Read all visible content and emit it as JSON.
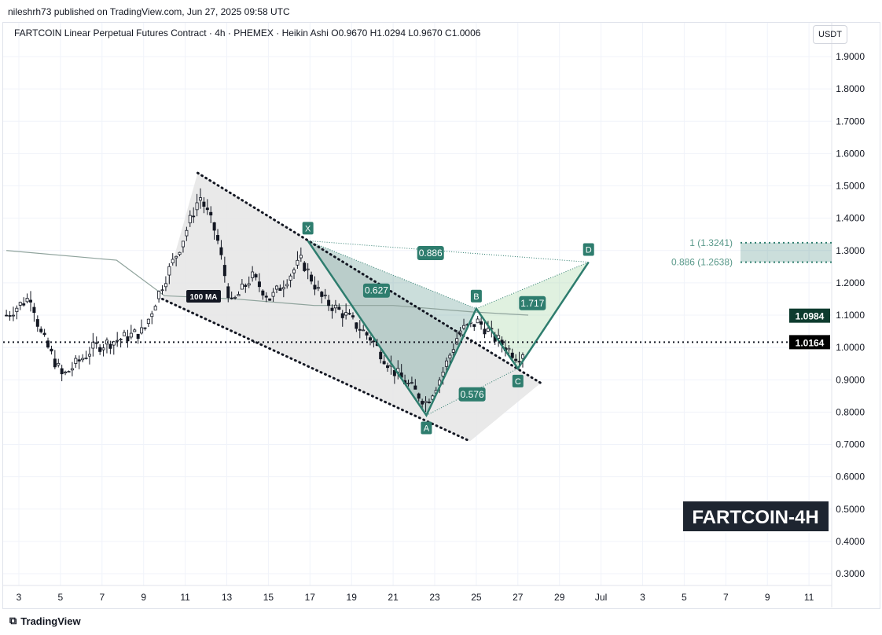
{
  "header": {
    "published": "nileshrh73 published on TradingView.com, Jun 27, 2025 09:58 UTC",
    "legend": "FARTCOIN Linear Perpetual Futures Contract · 4h · PHEMEX · Heikin Ashi  O0.9670  H1.0294  L0.9670  C1.0006",
    "currency": "USDT"
  },
  "footer": {
    "brand": "TradingView"
  },
  "chart_data": {
    "type": "candlestick",
    "title": "FARTCOIN-4H",
    "ylim": [
      0.25,
      1.95
    ],
    "y_ticks": [
      "1.9000",
      "1.8000",
      "1.7000",
      "1.6000",
      "1.5000",
      "1.4000",
      "1.3000",
      "1.2000",
      "1.1000",
      "1.0000",
      "0.9000",
      "0.8000",
      "0.7000",
      "0.6000",
      "0.5000",
      "0.4000",
      "0.3000"
    ],
    "x_ticks": [
      {
        "d": 3,
        "l": "3"
      },
      {
        "d": 5,
        "l": "5"
      },
      {
        "d": 7,
        "l": "7"
      },
      {
        "d": 9,
        "l": "9"
      },
      {
        "d": 11,
        "l": "11"
      },
      {
        "d": 13,
        "l": "13"
      },
      {
        "d": 15,
        "l": "15"
      },
      {
        "d": 17,
        "l": "17"
      },
      {
        "d": 19,
        "l": "19"
      },
      {
        "d": 21,
        "l": "21"
      },
      {
        "d": 23,
        "l": "23"
      },
      {
        "d": 25,
        "l": "25"
      },
      {
        "d": 27,
        "l": "27"
      },
      {
        "d": 29,
        "l": "29"
      },
      {
        "d": 31,
        "l": "Jul"
      },
      {
        "d": 33,
        "l": "3"
      },
      {
        "d": 35,
        "l": "5"
      },
      {
        "d": 37,
        "l": "7"
      },
      {
        "d": 39,
        "l": "9"
      },
      {
        "d": 41,
        "l": "11"
      }
    ],
    "price_path": [
      [
        2.4,
        1.1
      ],
      [
        3.6,
        1.16
      ],
      [
        4,
        1.05
      ],
      [
        5.1,
        0.91
      ],
      [
        6.6,
        1.0
      ],
      [
        9,
        1.05
      ],
      [
        9.8,
        1.18
      ],
      [
        10.8,
        1.32
      ],
      [
        11.7,
        1.47
      ],
      [
        12.5,
        1.35
      ],
      [
        13.2,
        1.13
      ],
      [
        14.2,
        1.22
      ],
      [
        15.1,
        1.15
      ],
      [
        16.6,
        1.27
      ],
      [
        17.6,
        1.15
      ],
      [
        18.7,
        1.1
      ],
      [
        19.9,
        1.03
      ],
      [
        21,
        0.93
      ],
      [
        21.8,
        0.88
      ],
      [
        22.6,
        0.83
      ],
      [
        23.3,
        0.91
      ],
      [
        24.2,
        1.05
      ],
      [
        25.1,
        1.08
      ],
      [
        25.9,
        1.03
      ],
      [
        27,
        0.97
      ],
      [
        27.4,
        1.0
      ]
    ],
    "ma100": {
      "label": "100 MA",
      "points": [
        [
          2.4,
          1.3
        ],
        [
          7.7,
          1.27
        ],
        [
          10,
          1.16
        ],
        [
          13.4,
          1.15
        ],
        [
          17.2,
          1.13
        ],
        [
          21,
          1.13
        ],
        [
          24.8,
          1.11
        ],
        [
          27.5,
          1.1
        ]
      ]
    },
    "last_price": "1.0164",
    "ma_value": "1.0984",
    "pattern": {
      "points": [
        {
          "n": "X",
          "d": 16.9,
          "p": 1.33
        },
        {
          "n": "A",
          "d": 22.6,
          "p": 0.79
        },
        {
          "n": "B",
          "d": 25,
          "p": 1.12
        },
        {
          "n": "C",
          "d": 27,
          "p": 0.935
        },
        {
          "n": "D",
          "d": 30.4,
          "p": 1.264
        }
      ],
      "ratios": [
        {
          "v": "0.627",
          "d": 20.2,
          "p": 1.176
        },
        {
          "v": "0.886",
          "d": 22.8,
          "p": 1.292
        },
        {
          "v": "1.717",
          "d": 27.7,
          "p": 1.137
        },
        {
          "v": "0.576",
          "d": 24.8,
          "p": 0.855
        }
      ]
    },
    "channel": {
      "upper": [
        [
          11.6,
          1.54
        ],
        [
          28.1,
          0.89
        ]
      ],
      "lower": [
        [
          9.9,
          1.15
        ],
        [
          24.7,
          0.71
        ]
      ]
    },
    "prz": {
      "high_label": "1 (1.3241)",
      "low_label": "0.886 (1.2638)",
      "high": 1.3241,
      "low": 1.2638
    },
    "colors": {
      "up": "#131722",
      "pattern": "#2e7d6e",
      "fill": "#c8e6c9"
    }
  }
}
